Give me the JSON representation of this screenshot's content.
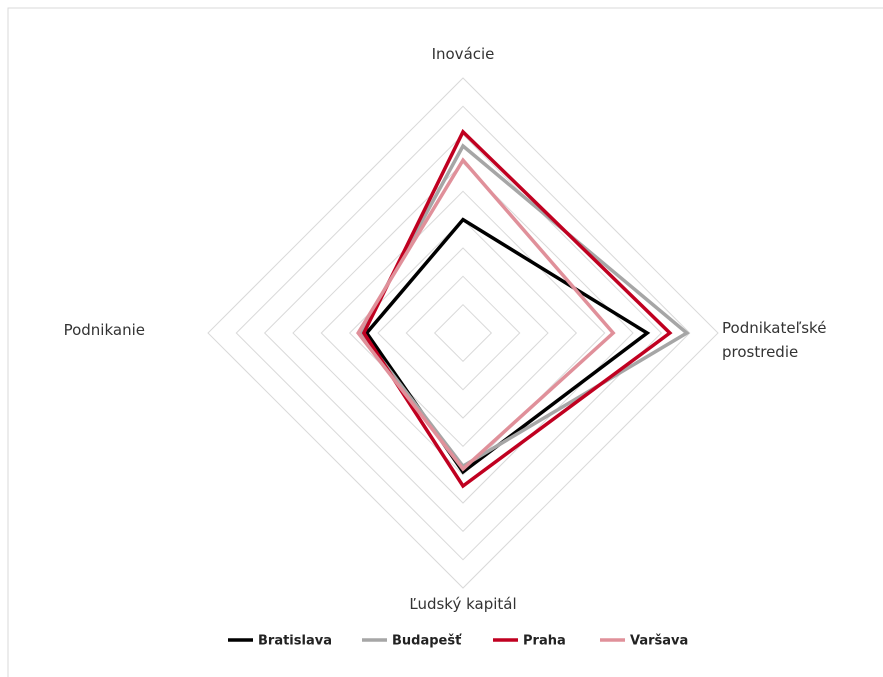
{
  "chart_data": {
    "type": "radar",
    "categories": [
      "Inovácie",
      "Podnikateľské prostredie",
      "Ľudský kapitál",
      "Podnikanie"
    ],
    "ylim": [
      0,
      9
    ],
    "yticks": [
      1,
      2,
      3,
      4,
      5,
      6,
      7,
      8,
      9
    ],
    "grid": true,
    "legend": "bottom",
    "series": [
      {
        "name": "Bratislava",
        "color": "#000000",
        "values": [
          4.0,
          6.5,
          4.9,
          3.4
        ]
      },
      {
        "name": "Budapešť",
        "color": "#a6a6a6",
        "values": [
          6.6,
          7.9,
          4.7,
          3.6
        ]
      },
      {
        "name": "Praha",
        "color": "#c00020",
        "values": [
          7.1,
          7.3,
          5.4,
          3.5
        ]
      },
      {
        "name": "Varšava",
        "color": "#e0909a",
        "values": [
          6.1,
          5.3,
          4.8,
          3.7
        ]
      }
    ]
  }
}
